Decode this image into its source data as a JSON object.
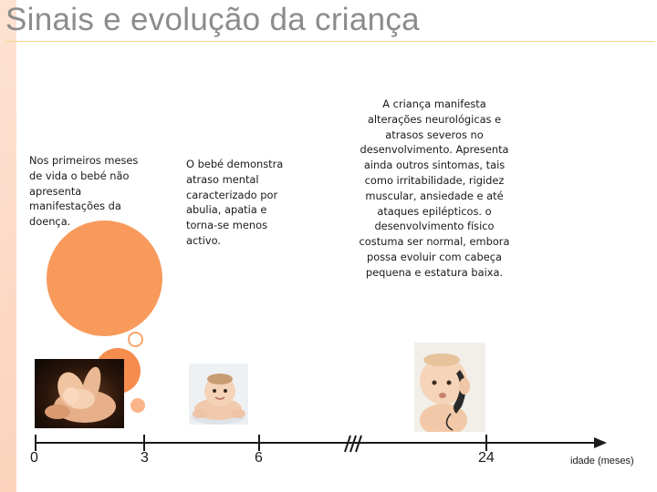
{
  "title": "Sinais e evolução da criança",
  "stages": [
    {
      "text": "Nos primeiros meses de vida o bebé não apresenta manifestações da doença."
    },
    {
      "text": "O bebé demonstra atraso mental caracterizado por abulia, apatia e torna-se menos activo."
    },
    {
      "text": "A criança manifesta alterações neurológicas e atrasos severos no desenvolvimento. Apresenta ainda outros sintomas, tais como irritabilidade, rigidez muscular, ansiedade e até ataques epilépticos. o desenvolvimento físico costuma ser normal, embora possa evoluir com cabeça pequena e estatura baixa."
    }
  ],
  "timeline": {
    "ticks": [
      "0",
      "3",
      "6",
      "24"
    ],
    "axis_label": "idade (meses)"
  },
  "colors": {
    "accent_orange": "#f89a5c",
    "title_gray": "#8c8c8c",
    "title_rule": "#f6d68a",
    "sidebar": "#fde2d2"
  },
  "icons": [
    "baby-in-hands-photo",
    "crawling-baby-photo",
    "baby-with-phone-photo",
    "axis-break-icon"
  ]
}
